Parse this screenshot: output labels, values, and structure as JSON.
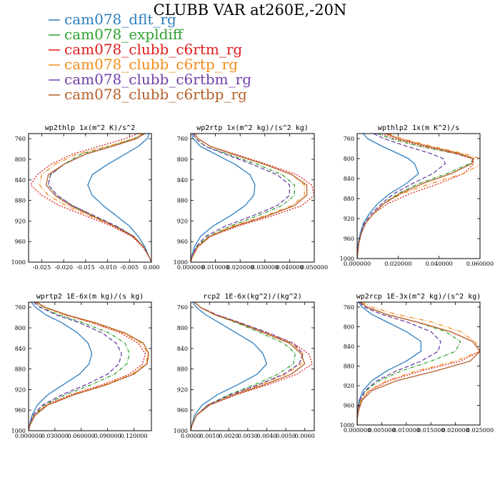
{
  "figure_title": "CLUBB VAR at260E,-20N",
  "colors": {
    "cam078_dflt_rg": "#2e7fbf",
    "cam078_expldiff": "#2ea02e",
    "cam078_clubb_c6rtm_rg": "#e01b1b",
    "cam078_clubb_c6rtp_rg": "#f28c1c",
    "cam078_clubb_c6rtbm_rg": "#7040a8",
    "cam078_clubb_c6rtbp_rg": "#b5602a"
  },
  "chart_data": [
    {
      "type": "line",
      "title": "wp2thlp  1x(m^2 K)/s^2",
      "xlim": [
        -0.028,
        0.0
      ],
      "ylim": [
        1000,
        750
      ],
      "xticks": [
        -0.025,
        -0.02,
        -0.015,
        -0.01,
        -0.005,
        0.0
      ],
      "xtick_labels": [
        "-0.025",
        "-0.020",
        "-0.015",
        "-0.010",
        "-0.005",
        "0.000"
      ],
      "yticks": [
        760,
        800,
        840,
        880,
        920,
        960,
        1000
      ],
      "y": [
        750,
        760,
        775,
        790,
        810,
        830,
        850,
        870,
        890,
        910,
        930,
        950,
        970,
        990,
        1000
      ],
      "series": [
        {
          "name": "cam078_dflt_rg",
          "dash": "solid",
          "values": [
            -0.0005,
            -0.001,
            -0.003,
            -0.006,
            -0.01,
            -0.0135,
            -0.0145,
            -0.0135,
            -0.011,
            -0.008,
            -0.005,
            -0.003,
            -0.0015,
            -0.0005,
            0.0
          ]
        },
        {
          "name": "cam078_expldiff",
          "dash": "5,2,1,2",
          "values": [
            -0.002,
            -0.004,
            -0.01,
            -0.016,
            -0.02,
            -0.023,
            -0.0235,
            -0.0215,
            -0.018,
            -0.013,
            -0.008,
            -0.004,
            -0.0018,
            -0.0005,
            0.0
          ]
        },
        {
          "name": "cam078_clubb_c6rtm_rg",
          "dash": "2,2",
          "values": [
            -0.003,
            -0.006,
            -0.012,
            -0.018,
            -0.023,
            -0.026,
            -0.0275,
            -0.025,
            -0.021,
            -0.015,
            -0.009,
            -0.0045,
            -0.002,
            -0.0005,
            0.0
          ]
        },
        {
          "name": "cam078_clubb_c6rtp_rg",
          "dash": "6,2,1,2,1,2",
          "values": [
            -0.002,
            -0.004,
            -0.01,
            -0.017,
            -0.022,
            -0.025,
            -0.0255,
            -0.0235,
            -0.0195,
            -0.014,
            -0.0085,
            -0.004,
            -0.0018,
            -0.0005,
            0.0
          ]
        },
        {
          "name": "cam078_clubb_c6rtbm_rg",
          "dash": "6,3",
          "values": [
            -0.0015,
            -0.0035,
            -0.009,
            -0.015,
            -0.02,
            -0.023,
            -0.0235,
            -0.0215,
            -0.018,
            -0.013,
            -0.008,
            -0.004,
            -0.0018,
            -0.0005,
            0.0
          ]
        },
        {
          "name": "cam078_clubb_c6rtbp_rg",
          "dash": "solid",
          "values": [
            -0.0015,
            -0.0035,
            -0.009,
            -0.015,
            -0.02,
            -0.0235,
            -0.024,
            -0.022,
            -0.0185,
            -0.0135,
            -0.0085,
            -0.0042,
            -0.0018,
            -0.0005,
            0.0
          ]
        }
      ]
    },
    {
      "type": "line",
      "title": "wp2rtp  1x(m^2 kg)/(s^2 kg)",
      "xlim": [
        0.0,
        0.05
      ],
      "ylim": [
        1000,
        750
      ],
      "xticks": [
        0.0,
        0.01,
        0.02,
        0.03,
        0.04,
        0.05
      ],
      "xtick_labels": [
        "0.000000",
        "0.010000",
        "0.020000",
        "0.030000",
        "0.040000",
        "0.050000"
      ],
      "yticks": [
        760,
        800,
        840,
        880,
        920,
        960,
        1000
      ],
      "y": [
        750,
        760,
        775,
        790,
        810,
        830,
        850,
        870,
        890,
        910,
        930,
        950,
        970,
        990,
        1000
      ],
      "series": [
        {
          "name": "cam078_dflt_rg",
          "dash": "solid",
          "values": [
            0.0005,
            0.001,
            0.004,
            0.01,
            0.018,
            0.024,
            0.026,
            0.0255,
            0.022,
            0.016,
            0.009,
            0.004,
            0.0015,
            0.0003,
            0.0
          ]
        },
        {
          "name": "cam078_expldiff",
          "dash": "5,2,1,2",
          "values": [
            0.001,
            0.002,
            0.006,
            0.015,
            0.027,
            0.037,
            0.042,
            0.042,
            0.037,
            0.027,
            0.016,
            0.007,
            0.0025,
            0.0005,
            0.0
          ]
        },
        {
          "name": "cam078_clubb_c6rtm_rg",
          "dash": "2,2",
          "values": [
            0.0015,
            0.003,
            0.008,
            0.018,
            0.031,
            0.043,
            0.049,
            0.05,
            0.045,
            0.033,
            0.019,
            0.008,
            0.003,
            0.0006,
            0.0
          ]
        },
        {
          "name": "cam078_clubb_c6rtp_rg",
          "dash": "6,2,1,2,1,2",
          "values": [
            0.0015,
            0.003,
            0.008,
            0.017,
            0.03,
            0.041,
            0.046,
            0.046,
            0.041,
            0.03,
            0.017,
            0.0075,
            0.0028,
            0.0006,
            0.0
          ]
        },
        {
          "name": "cam078_clubb_c6rtbm_rg",
          "dash": "6,3",
          "values": [
            0.001,
            0.002,
            0.006,
            0.014,
            0.025,
            0.035,
            0.04,
            0.04,
            0.035,
            0.025,
            0.014,
            0.006,
            0.0022,
            0.0005,
            0.0
          ]
        },
        {
          "name": "cam078_clubb_c6rtbp_rg",
          "dash": "solid",
          "values": [
            0.0015,
            0.003,
            0.008,
            0.017,
            0.03,
            0.041,
            0.047,
            0.047,
            0.042,
            0.031,
            0.018,
            0.0078,
            0.0028,
            0.0006,
            0.0
          ]
        }
      ]
    },
    {
      "type": "line",
      "title": "wpthlp2  1x(m K^2)/s",
      "xlim": [
        0.0,
        0.06
      ],
      "ylim": [
        1000,
        750
      ],
      "xticks": [
        0.0,
        0.02,
        0.04,
        0.06
      ],
      "xtick_labels": [
        "0.000000",
        "0.020000",
        "0.040000",
        "0.060000"
      ],
      "yticks": [
        760,
        800,
        840,
        880,
        920,
        960,
        1000
      ],
      "y": [
        750,
        760,
        775,
        790,
        800,
        810,
        830,
        850,
        870,
        890,
        910,
        930,
        950,
        970,
        990,
        1000
      ],
      "series": [
        {
          "name": "cam078_dflt_rg",
          "dash": "solid",
          "values": [
            0.003,
            0.005,
            0.012,
            0.02,
            0.025,
            0.028,
            0.03,
            0.024,
            0.016,
            0.01,
            0.006,
            0.003,
            0.0015,
            0.0005,
            0.0001,
            0.0
          ]
        },
        {
          "name": "cam078_expldiff",
          "dash": "5,2,1,2",
          "values": [
            0.01,
            0.016,
            0.03,
            0.048,
            0.057,
            0.055,
            0.044,
            0.03,
            0.02,
            0.013,
            0.008,
            0.004,
            0.002,
            0.0008,
            0.0002,
            0.0
          ]
        },
        {
          "name": "cam078_clubb_c6rtm_rg",
          "dash": "2,2",
          "values": [
            0.012,
            0.018,
            0.032,
            0.048,
            0.056,
            0.057,
            0.052,
            0.04,
            0.026,
            0.015,
            0.008,
            0.004,
            0.002,
            0.0008,
            0.0002,
            0.0
          ]
        },
        {
          "name": "cam078_clubb_c6rtp_rg",
          "dash": "6,2,1,2,1,2",
          "values": [
            0.015,
            0.022,
            0.036,
            0.052,
            0.06,
            0.061,
            0.052,
            0.036,
            0.022,
            0.013,
            0.008,
            0.004,
            0.002,
            0.0008,
            0.0002,
            0.0
          ]
        },
        {
          "name": "cam078_clubb_c6rtbm_rg",
          "dash": "6,3",
          "values": [
            0.008,
            0.013,
            0.024,
            0.036,
            0.042,
            0.043,
            0.037,
            0.027,
            0.018,
            0.012,
            0.007,
            0.0035,
            0.0018,
            0.0007,
            0.0002,
            0.0
          ]
        },
        {
          "name": "cam078_clubb_c6rtbp_rg",
          "dash": "solid",
          "values": [
            0.014,
            0.02,
            0.034,
            0.05,
            0.057,
            0.056,
            0.046,
            0.032,
            0.021,
            0.013,
            0.008,
            0.004,
            0.002,
            0.0008,
            0.0002,
            0.0
          ]
        }
      ]
    },
    {
      "type": "line",
      "title": "wprtp2  1E-6x(m kg)/(s kg)",
      "xlim": [
        0.0,
        0.14
      ],
      "ylim": [
        1000,
        750
      ],
      "xticks": [
        0.0,
        0.03,
        0.06,
        0.09,
        0.12
      ],
      "xtick_labels": [
        "0.000000",
        "0.030000",
        "0.060000",
        "0.090000",
        "0.120000"
      ],
      "yticks": [
        760,
        800,
        840,
        880,
        920,
        960,
        1000
      ],
      "y": [
        750,
        760,
        775,
        790,
        810,
        830,
        850,
        870,
        890,
        910,
        930,
        950,
        970,
        990,
        1000
      ],
      "series": [
        {
          "name": "cam078_dflt_rg",
          "dash": "solid",
          "values": [
            0.003,
            0.008,
            0.02,
            0.038,
            0.056,
            0.068,
            0.072,
            0.069,
            0.058,
            0.04,
            0.022,
            0.01,
            0.004,
            0.0008,
            0.0
          ]
        },
        {
          "name": "cam078_expldiff",
          "dash": "5,2,1,2",
          "values": [
            0.006,
            0.014,
            0.035,
            0.062,
            0.092,
            0.11,
            0.115,
            0.112,
            0.098,
            0.072,
            0.042,
            0.018,
            0.006,
            0.001,
            0.0
          ]
        },
        {
          "name": "cam078_clubb_c6rtm_rg",
          "dash": "2,2",
          "values": [
            0.008,
            0.018,
            0.042,
            0.072,
            0.105,
            0.125,
            0.133,
            0.13,
            0.115,
            0.085,
            0.048,
            0.02,
            0.007,
            0.0012,
            0.0
          ]
        },
        {
          "name": "cam078_clubb_c6rtp_rg",
          "dash": "6,2,1,2,1,2",
          "values": [
            0.008,
            0.018,
            0.042,
            0.074,
            0.108,
            0.129,
            0.136,
            0.134,
            0.118,
            0.088,
            0.05,
            0.021,
            0.007,
            0.0012,
            0.0
          ]
        },
        {
          "name": "cam078_clubb_c6rtbm_rg",
          "dash": "6,3",
          "values": [
            0.006,
            0.013,
            0.032,
            0.058,
            0.084,
            0.1,
            0.106,
            0.103,
            0.09,
            0.066,
            0.038,
            0.016,
            0.005,
            0.001,
            0.0
          ]
        },
        {
          "name": "cam078_clubb_c6rtbp_rg",
          "dash": "solid",
          "values": [
            0.009,
            0.019,
            0.044,
            0.076,
            0.11,
            0.131,
            0.137,
            0.135,
            0.12,
            0.09,
            0.052,
            0.022,
            0.0075,
            0.0013,
            0.0
          ]
        }
      ]
    },
    {
      "type": "line",
      "title": "rcp2  1E-6x(kg^2)/(kg^2)",
      "xlim": [
        0.0,
        0.0065
      ],
      "ylim": [
        1000,
        750
      ],
      "xticks": [
        0.0,
        0.001,
        0.002,
        0.003,
        0.004,
        0.005,
        0.006
      ],
      "xtick_labels": [
        "0.0000",
        "0.0010",
        "0.0020",
        "0.0030",
        "0.0040",
        "0.0050",
        "0.0060"
      ],
      "yticks": [
        760,
        800,
        840,
        880,
        920,
        960,
        1000
      ],
      "y": [
        750,
        760,
        775,
        790,
        810,
        830,
        850,
        870,
        890,
        910,
        930,
        950,
        970,
        990,
        1000
      ],
      "series": [
        {
          "name": "cam078_dflt_rg",
          "dash": "solid",
          "values": [
            0.0001,
            0.0003,
            0.0008,
            0.0015,
            0.0024,
            0.0033,
            0.0038,
            0.004,
            0.0035,
            0.0025,
            0.0014,
            0.0006,
            0.0002,
            5e-05,
            0.0
          ]
        },
        {
          "name": "cam078_expldiff",
          "dash": "5,2,1,2",
          "values": [
            0.0002,
            0.0005,
            0.0013,
            0.0024,
            0.0037,
            0.0049,
            0.0055,
            0.0054,
            0.0046,
            0.0034,
            0.002,
            0.0009,
            0.0003,
            5e-05,
            0.0
          ]
        },
        {
          "name": "cam078_clubb_c6rtm_rg",
          "dash": "2,2",
          "values": [
            0.0002,
            0.0005,
            0.0013,
            0.0025,
            0.004,
            0.0054,
            0.0062,
            0.0064,
            0.0056,
            0.0041,
            0.0024,
            0.001,
            0.0003,
            6e-05,
            0.0
          ]
        },
        {
          "name": "cam078_clubb_c6rtp_rg",
          "dash": "6,2,1,2,1,2",
          "values": [
            0.0002,
            0.0005,
            0.0014,
            0.0026,
            0.004,
            0.0053,
            0.0059,
            0.0058,
            0.005,
            0.0037,
            0.0022,
            0.0009,
            0.0003,
            6e-05,
            0.0
          ]
        },
        {
          "name": "cam078_clubb_c6rtbm_rg",
          "dash": "6,3",
          "values": [
            0.0002,
            0.0005,
            0.0014,
            0.0026,
            0.0041,
            0.0054,
            0.0059,
            0.0057,
            0.0049,
            0.0036,
            0.0021,
            0.0009,
            0.0003,
            6e-05,
            0.0
          ]
        },
        {
          "name": "cam078_clubb_c6rtbp_rg",
          "dash": "solid",
          "values": [
            0.0002,
            0.0005,
            0.0013,
            0.0025,
            0.0039,
            0.0052,
            0.0058,
            0.006,
            0.0053,
            0.0039,
            0.0023,
            0.001,
            0.0003,
            6e-05,
            0.0
          ]
        }
      ]
    },
    {
      "type": "line",
      "title": "wp2rcp  1E-3x(m^2 kg)/(s^2 kg)",
      "xlim": [
        0.0,
        0.025
      ],
      "ylim": [
        1000,
        750
      ],
      "xticks": [
        0.0,
        0.005,
        0.01,
        0.015,
        0.02,
        0.025
      ],
      "xtick_labels": [
        "0.000000",
        "0.005000",
        "0.010000",
        "0.015000",
        "0.020000",
        "0.025000"
      ],
      "yticks": [
        760,
        800,
        840,
        880,
        920,
        960,
        1000
      ],
      "y": [
        750,
        760,
        775,
        790,
        810,
        830,
        850,
        870,
        890,
        910,
        930,
        950,
        970,
        990,
        1000
      ],
      "series": [
        {
          "name": "cam078_dflt_rg",
          "dash": "solid",
          "values": [
            0.0003,
            0.001,
            0.003,
            0.006,
            0.01,
            0.013,
            0.013,
            0.01,
            0.006,
            0.003,
            0.0012,
            0.0004,
            0.0001,
            0.0,
            0.0
          ]
        },
        {
          "name": "cam078_expldiff",
          "dash": "5,2,1,2",
          "values": [
            0.0005,
            0.002,
            0.006,
            0.012,
            0.018,
            0.021,
            0.02,
            0.015,
            0.009,
            0.0045,
            0.0018,
            0.0006,
            0.0002,
            0.0,
            0.0
          ]
        },
        {
          "name": "cam078_clubb_c6rtm_rg",
          "dash": "2,2",
          "values": [
            0.0006,
            0.002,
            0.006,
            0.012,
            0.019,
            0.0235,
            0.025,
            0.021,
            0.013,
            0.0065,
            0.0025,
            0.0008,
            0.0002,
            0.0,
            0.0
          ]
        },
        {
          "name": "cam078_clubb_c6rtp_rg",
          "dash": "6,2,1,2,1,2",
          "values": [
            0.001,
            0.003,
            0.008,
            0.015,
            0.021,
            0.024,
            0.025,
            0.02,
            0.012,
            0.006,
            0.0024,
            0.0008,
            0.0002,
            0.0,
            0.0
          ]
        },
        {
          "name": "cam078_clubb_c6rtbm_rg",
          "dash": "6,3",
          "values": [
            0.0005,
            0.0015,
            0.005,
            0.01,
            0.015,
            0.017,
            0.0165,
            0.013,
            0.008,
            0.004,
            0.0016,
            0.0005,
            0.0001,
            0.0,
            0.0
          ]
        },
        {
          "name": "cam078_clubb_c6rtbp_rg",
          "dash": "solid",
          "values": [
            0.0006,
            0.002,
            0.006,
            0.012,
            0.019,
            0.0235,
            0.025,
            0.023,
            0.016,
            0.008,
            0.003,
            0.001,
            0.0003,
            0.0,
            0.0
          ]
        }
      ]
    }
  ]
}
